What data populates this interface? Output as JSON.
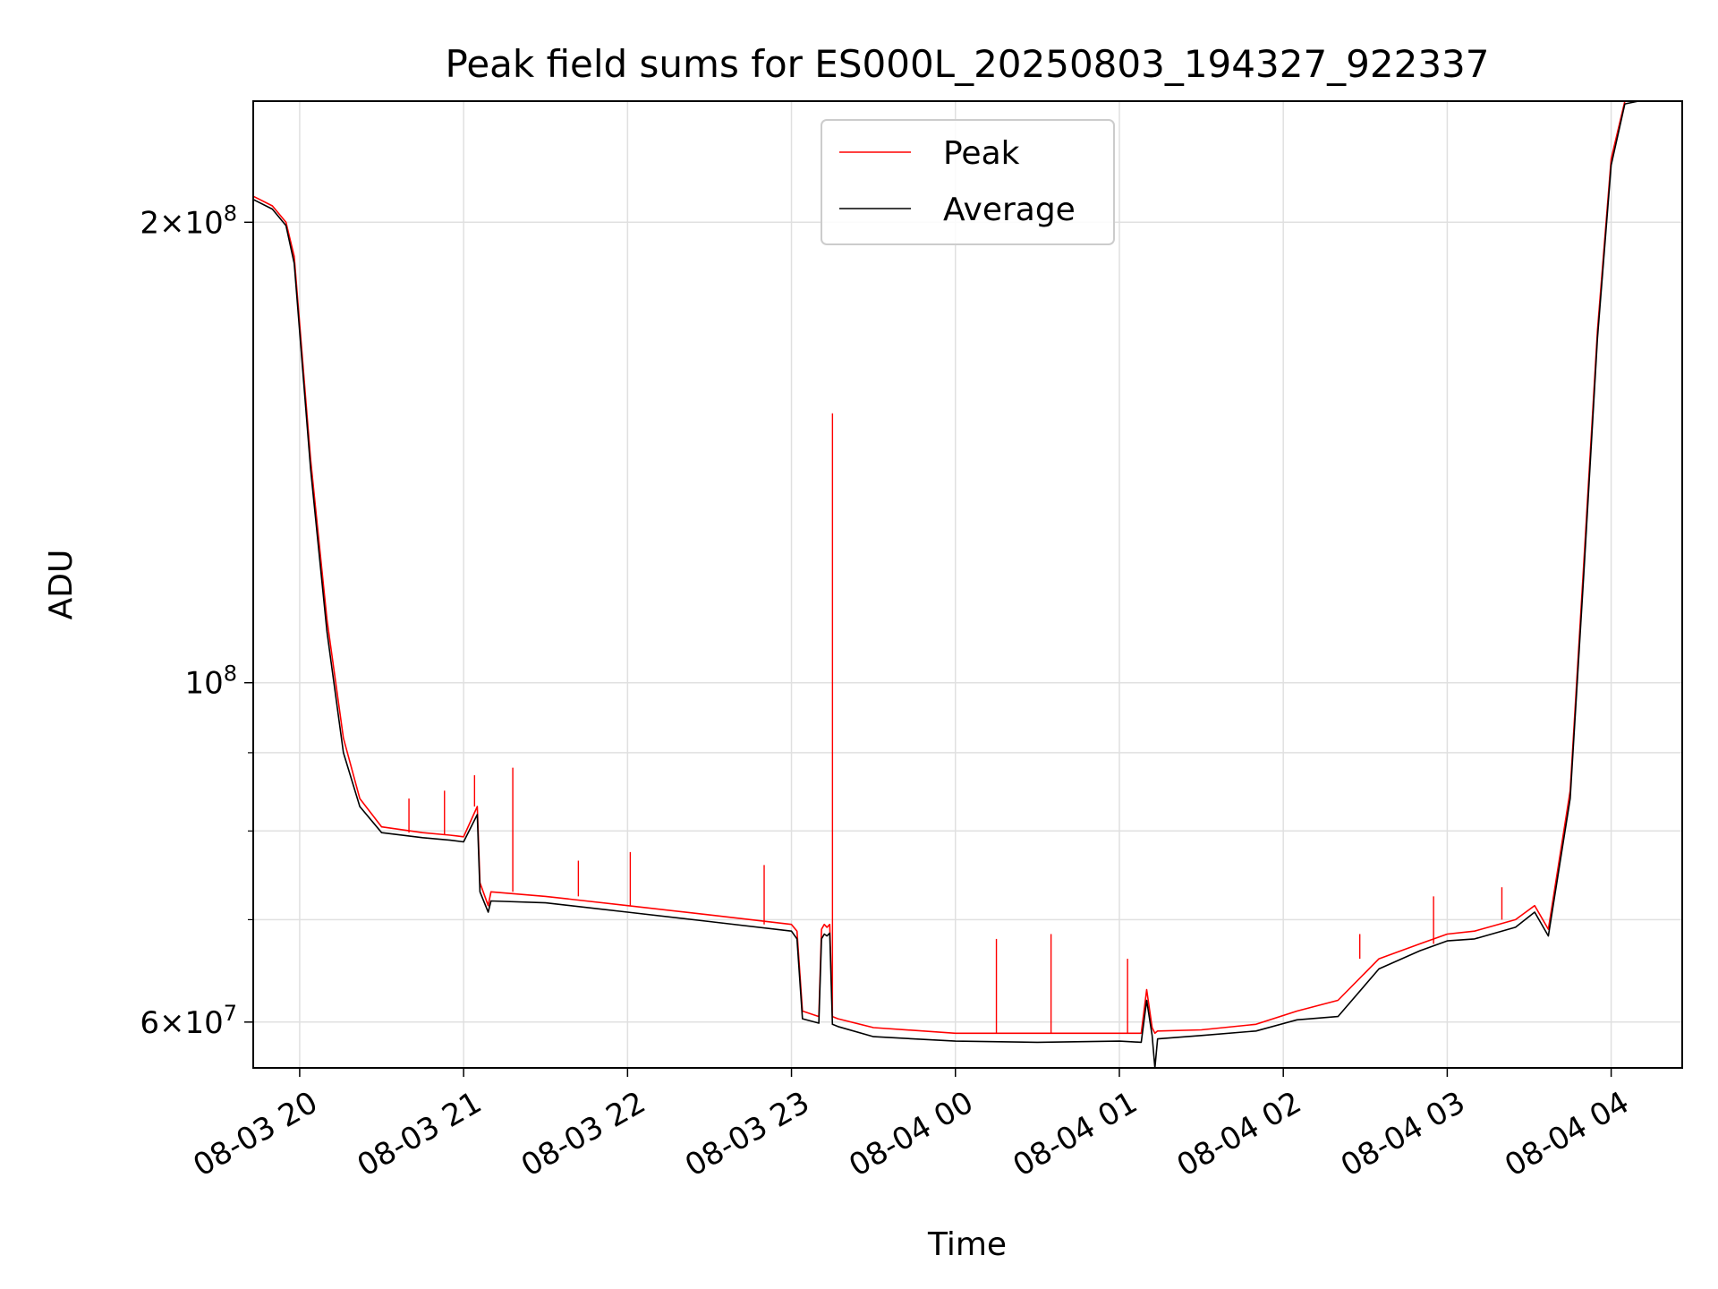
{
  "chart_data": {
    "type": "line",
    "title": "Peak field sums for ES000L_20250803_194327_922337",
    "xlabel": "Time",
    "ylabel": "ADU",
    "yscale": "log",
    "xlim": [
      "2025-08-03 19:43",
      "2025-08-04 04:26"
    ],
    "ylim": [
      56000000,
      240000000
    ],
    "grid": true,
    "legend_position": "top-center",
    "x_ticks": [
      "08-03 20",
      "08-03 21",
      "08-03 22",
      "08-03 23",
      "08-04 00",
      "08-04 01",
      "08-04 02",
      "08-04 03",
      "08-04 04"
    ],
    "y_major_ticks": [
      {
        "value": 60000000,
        "mantissa": "6",
        "exponent": "7"
      },
      {
        "value": 100000000,
        "mantissa": "",
        "exponent": "8"
      },
      {
        "value": 200000000,
        "mantissa": "2",
        "exponent": "8"
      }
    ],
    "y_minor_ticks": [
      70000000,
      80000000,
      90000000
    ],
    "series": [
      {
        "name": "Peak",
        "color": "#ff0000",
        "x": [
          "2025-08-03 19:43",
          "2025-08-03 19:50",
          "2025-08-03 19:55",
          "2025-08-03 19:58",
          "2025-08-03 20:04",
          "2025-08-03 20:10",
          "2025-08-03 20:16",
          "2025-08-03 20:22",
          "2025-08-03 20:30",
          "2025-08-03 20:45",
          "2025-08-03 20:55",
          "2025-08-03 21:00",
          "2025-08-03 21:05",
          "2025-08-03 21:06",
          "2025-08-03 21:09",
          "2025-08-03 21:10",
          "2025-08-03 21:30",
          "2025-08-03 22:00",
          "2025-08-03 22:30",
          "2025-08-03 23:00",
          "2025-08-03 23:02",
          "2025-08-03 23:04",
          "2025-08-03 23:10",
          "2025-08-03 23:11",
          "2025-08-03 23:12",
          "2025-08-03 23:13",
          "2025-08-03 23:14",
          "2025-08-03 23:15",
          "2025-08-03 23:17",
          "2025-08-03 23:30",
          "2025-08-04 00:00",
          "2025-08-04 00:30",
          "2025-08-04 01:00",
          "2025-08-04 01:08",
          "2025-08-04 01:10",
          "2025-08-04 01:12",
          "2025-08-04 01:13",
          "2025-08-04 01:14",
          "2025-08-04 01:30",
          "2025-08-04 01:50",
          "2025-08-04 02:05",
          "2025-08-04 02:20",
          "2025-08-04 02:35",
          "2025-08-04 02:50",
          "2025-08-04 03:00",
          "2025-08-04 03:10",
          "2025-08-04 03:25",
          "2025-08-04 03:32",
          "2025-08-04 03:37",
          "2025-08-04 03:45",
          "2025-08-04 03:50",
          "2025-08-04 03:55",
          "2025-08-04 04:00",
          "2025-08-04 04:05",
          "2025-08-04 04:10",
          "2025-08-04 04:26"
        ],
        "y": [
          208000000,
          205000000,
          200000000,
          190000000,
          140000000,
          110000000,
          92000000,
          84000000,
          80500000,
          79800000,
          79500000,
          79300000,
          83000000,
          74000000,
          71500000,
          73000000,
          72500000,
          71500000,
          70500000,
          69500000,
          68800000,
          61000000,
          60500000,
          69000000,
          69500000,
          69200000,
          69500000,
          60500000,
          60300000,
          59500000,
          59000000,
          59000000,
          59000000,
          59000000,
          63000000,
          59500000,
          59000000,
          59200000,
          59300000,
          59800000,
          61000000,
          62000000,
          66000000,
          67500000,
          68500000,
          68800000,
          70000000,
          71500000,
          69000000,
          85000000,
          120000000,
          170000000,
          220000000,
          240000000,
          242000000,
          242000000
        ],
        "spikes": [
          {
            "x": "2025-08-03 20:40",
            "y": 84000000
          },
          {
            "x": "2025-08-03 20:53",
            "y": 85000000
          },
          {
            "x": "2025-08-03 21:04",
            "y": 87000000
          },
          {
            "x": "2025-08-03 21:18",
            "y": 88000000
          },
          {
            "x": "2025-08-03 21:42",
            "y": 76500000
          },
          {
            "x": "2025-08-03 22:01",
            "y": 77500000
          },
          {
            "x": "2025-08-03 22:50",
            "y": 76000000
          },
          {
            "x": "2025-08-03 23:15",
            "y": 150000000
          },
          {
            "x": "2025-08-04 00:15",
            "y": 68000000
          },
          {
            "x": "2025-08-04 00:35",
            "y": 68500000
          },
          {
            "x": "2025-08-04 01:03",
            "y": 66000000
          },
          {
            "x": "2025-08-04 02:28",
            "y": 68500000
          },
          {
            "x": "2025-08-04 02:55",
            "y": 72500000
          },
          {
            "x": "2025-08-04 03:20",
            "y": 73500000
          }
        ]
      },
      {
        "name": "Average",
        "color": "#000000",
        "x": [
          "2025-08-03 19:43",
          "2025-08-03 19:50",
          "2025-08-03 19:55",
          "2025-08-03 19:58",
          "2025-08-03 20:04",
          "2025-08-03 20:10",
          "2025-08-03 20:16",
          "2025-08-03 20:22",
          "2025-08-03 20:30",
          "2025-08-03 20:45",
          "2025-08-03 20:55",
          "2025-08-03 21:00",
          "2025-08-03 21:05",
          "2025-08-03 21:06",
          "2025-08-03 21:09",
          "2025-08-03 21:10",
          "2025-08-03 21:30",
          "2025-08-03 22:00",
          "2025-08-03 22:30",
          "2025-08-03 23:00",
          "2025-08-03 23:02",
          "2025-08-03 23:04",
          "2025-08-03 23:10",
          "2025-08-03 23:11",
          "2025-08-03 23:12",
          "2025-08-03 23:13",
          "2025-08-03 23:14",
          "2025-08-03 23:15",
          "2025-08-03 23:17",
          "2025-08-03 23:30",
          "2025-08-04 00:00",
          "2025-08-04 00:30",
          "2025-08-04 01:00",
          "2025-08-04 01:08",
          "2025-08-04 01:10",
          "2025-08-04 01:12",
          "2025-08-04 01:13",
          "2025-08-04 01:14",
          "2025-08-04 01:30",
          "2025-08-04 01:50",
          "2025-08-04 02:05",
          "2025-08-04 02:20",
          "2025-08-04 02:35",
          "2025-08-04 02:50",
          "2025-08-04 03:00",
          "2025-08-04 03:10",
          "2025-08-04 03:25",
          "2025-08-04 03:32",
          "2025-08-04 03:37",
          "2025-08-04 03:45",
          "2025-08-04 03:50",
          "2025-08-04 03:55",
          "2025-08-04 04:00",
          "2025-08-04 04:05",
          "2025-08-04 04:10",
          "2025-08-04 04:26"
        ],
        "y": [
          207000000,
          204000000,
          199000000,
          188000000,
          138000000,
          108000000,
          90000000,
          83000000,
          79800000,
          79200000,
          78900000,
          78700000,
          82000000,
          73000000,
          70800000,
          72000000,
          71800000,
          70800000,
          69800000,
          68800000,
          68000000,
          60300000,
          59900000,
          68000000,
          68500000,
          68300000,
          68600000,
          59800000,
          59600000,
          58700000,
          58300000,
          58200000,
          58300000,
          58200000,
          62000000,
          58800000,
          55500000,
          58500000,
          58800000,
          59200000,
          60200000,
          60500000,
          65000000,
          66800000,
          67800000,
          68000000,
          69200000,
          70800000,
          68300000,
          84000000,
          118000000,
          168000000,
          218000000,
          239000000,
          242000000,
          242000000
        ],
        "spikes": []
      }
    ]
  }
}
